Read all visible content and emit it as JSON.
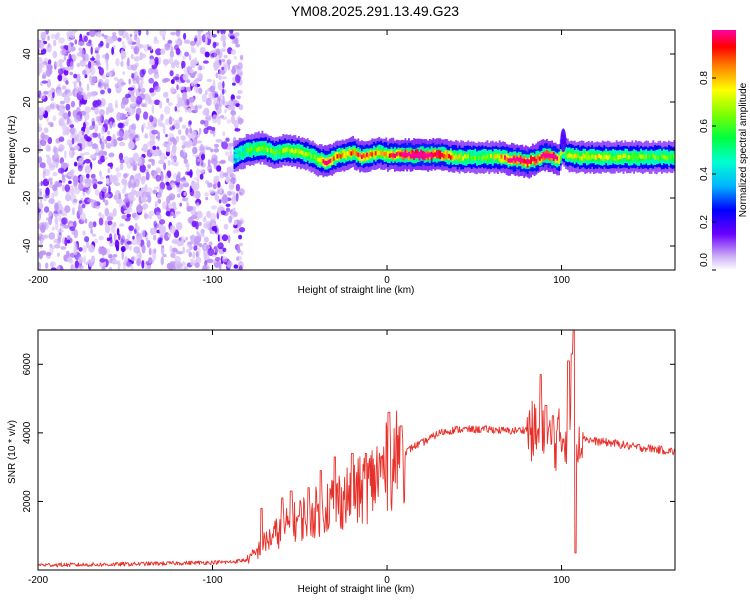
{
  "title": "YM08.2025.291.13.49.G23",
  "colors": {
    "snr_line": "#e8302a",
    "frame": "#000000",
    "scatter": "#7b2ee6"
  },
  "chart_data": [
    {
      "type": "heatmap",
      "name": "spectrogram",
      "title": "YM08.2025.291.13.49.G23",
      "xlabel": "Height of straight line (km)",
      "ylabel": "Frequency (Hz)",
      "xlim": [
        -200,
        165
      ],
      "ylim": [
        -50,
        50
      ],
      "x_ticks": [
        -200,
        -100,
        0,
        100
      ],
      "y_ticks": [
        -40,
        -20,
        0,
        20,
        40
      ],
      "colorbar": {
        "label": "Normalized spectral amplitude",
        "range": [
          0,
          1
        ],
        "ticks": [
          "0.0",
          "0.2",
          "0.4",
          "0.6",
          "0.8"
        ],
        "tick_values": [
          0,
          0.2,
          0.4,
          0.6,
          0.8
        ]
      },
      "noise_region_km": [
        -200,
        -85
      ],
      "signal_track": {
        "x_km": [
          -88,
          -80,
          -72,
          -65,
          -58,
          -50,
          -45,
          -40,
          -35,
          -30,
          -25,
          -20,
          -15,
          -10,
          -5,
          0,
          10,
          20,
          30,
          40,
          50,
          60,
          65,
          70,
          75,
          80,
          85,
          90,
          95,
          98,
          100,
          102,
          110,
          120,
          130,
          140,
          150,
          165
        ],
        "freq_hz": [
          -3,
          0,
          1,
          -1,
          0,
          -1,
          -2,
          -4,
          -5,
          -3,
          -2,
          -1,
          -3,
          -2,
          -1,
          -2,
          -2,
          -2,
          -2,
          -3,
          -3,
          -3,
          -3,
          -4,
          -4,
          -5,
          -4,
          -2,
          -3,
          -4,
          0,
          -2,
          -3,
          -3,
          -3,
          -3,
          -3,
          -3
        ],
        "amplitude": [
          0.35,
          0.5,
          0.55,
          0.5,
          0.55,
          0.6,
          0.5,
          0.6,
          0.8,
          0.7,
          0.65,
          0.7,
          0.75,
          0.7,
          0.65,
          0.7,
          0.9,
          0.95,
          0.85,
          0.6,
          0.5,
          0.55,
          0.7,
          0.8,
          0.85,
          0.9,
          0.8,
          0.85,
          0.9,
          0.7,
          0.5,
          0.55,
          0.6,
          0.6,
          0.55,
          0.55,
          0.5,
          0.5
        ]
      }
    },
    {
      "type": "line",
      "name": "snr",
      "xlabel": "Height of straight line (km)",
      "ylabel": "SNR (10 * v/v)",
      "xlim": [
        -200,
        165
      ],
      "ylim": [
        0,
        7000
      ],
      "x_ticks": [
        -200,
        -100,
        0,
        100
      ],
      "y_ticks": [
        2000,
        4000,
        6000
      ],
      "series": [
        {
          "name": "SNR",
          "x": [
            -200,
            -180,
            -160,
            -140,
            -120,
            -100,
            -90,
            -80,
            -75,
            -70,
            -65,
            -60,
            -55,
            -50,
            -45,
            -40,
            -35,
            -30,
            -25,
            -20,
            -15,
            -10,
            -5,
            0,
            5,
            10,
            15,
            20,
            25,
            30,
            35,
            40,
            50,
            60,
            70,
            80,
            85,
            90,
            95,
            100,
            105,
            108,
            110,
            115,
            120,
            130,
            140,
            150,
            165
          ],
          "y": [
            150,
            150,
            160,
            180,
            200,
            220,
            230,
            300,
            500,
            800,
            1000,
            1200,
            1300,
            1500,
            1600,
            1700,
            1900,
            2000,
            2100,
            2200,
            2300,
            2500,
            2800,
            3000,
            3200,
            3400,
            3600,
            3700,
            3850,
            4000,
            4050,
            4100,
            4100,
            4100,
            4050,
            4100,
            4000,
            3800,
            3700,
            3900,
            4000,
            4100,
            4000,
            3800,
            3750,
            3700,
            3600,
            3550,
            3450
          ]
        }
      ],
      "spikes": {
        "x": [
          -72,
          -60,
          -55,
          -45,
          -38,
          -30,
          -20,
          -12,
          1,
          8,
          88,
          91,
          95,
          104,
          106,
          107,
          108
        ],
        "y": [
          1800,
          2100,
          2300,
          2400,
          2900,
          3300,
          3400,
          3400,
          4600,
          4200,
          5700,
          4800,
          4500,
          6100,
          6300,
          7000,
          500
        ]
      }
    }
  ]
}
